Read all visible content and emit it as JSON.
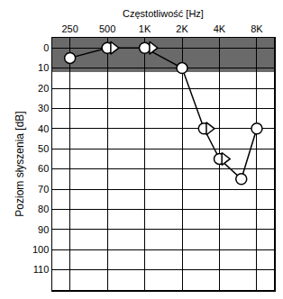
{
  "chart_data": {
    "type": "line",
    "x_label": "Częstotliwość [Hz]",
    "y_label": "Poziom słyszenia [dB]",
    "log": "x",
    "grid": true,
    "xlim": [
      180,
      11000
    ],
    "xticks": [
      250,
      500,
      {
        "value": 1000,
        "label": "1K"
      },
      {
        "value": 2000,
        "label": "2K"
      },
      {
        "value": 4000,
        "label": "4K"
      },
      {
        "value": 8000,
        "label": "8K"
      }
    ],
    "ylim": [
      -5,
      120
    ],
    "yticks": [
      0,
      10,
      20,
      30,
      40,
      50,
      60,
      70,
      80,
      90,
      100,
      110
    ],
    "shaded_band": [
      -5,
      12
    ],
    "series": [
      {
        "x": [
          250,
          500,
          1000,
          2000,
          3000,
          4000,
          6000,
          8000
        ],
        "values": [
          5,
          0,
          0,
          10,
          40,
          55,
          65,
          40
        ],
        "color": "#000000",
        "marker": "circle",
        "line_style": "solid"
      },
      {
        "x": [
          560,
          1150,
          3300,
          4400
        ],
        "values": [
          0,
          0,
          40,
          55
        ],
        "color": "#000000",
        "marker": "triangle-right",
        "line_style": "none"
      }
    ]
  }
}
